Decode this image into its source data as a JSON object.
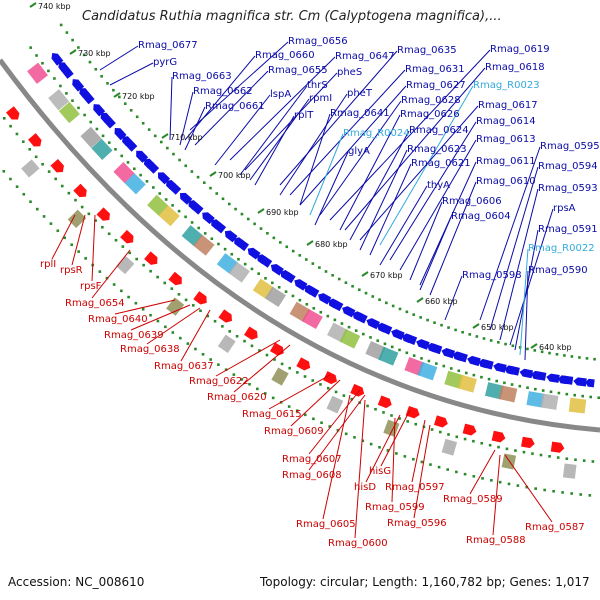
{
  "title": "Candidatus Ruthia magnifica str. Cm (Calyptogena magnifica),...",
  "footer": {
    "accession": "Accession: NC_008610",
    "topology": "Topology: circular; Length: 1,160,782 bp; Genes: 1,017"
  },
  "colors": {
    "forward_label": "#0a0aa8",
    "reverse_label": "#cc0000",
    "rna_label": "#33aadd",
    "backbone": "#888888",
    "dots": "#2a8a2a"
  },
  "ticks": [
    {
      "label": "740 kbp"
    },
    {
      "label": "730 kbp"
    },
    {
      "label": "720 kbp"
    },
    {
      "label": "710 kbp"
    },
    {
      "label": "700 kbp"
    },
    {
      "label": "690 kbp"
    },
    {
      "label": "680 kbp"
    },
    {
      "label": "670 kbp"
    },
    {
      "label": "660 kbp"
    },
    {
      "label": "650 kbp"
    },
    {
      "label": "640 kbp"
    }
  ],
  "forward_labels": [
    {
      "text": "Rmag_0677",
      "kind": "gene"
    },
    {
      "text": "pyrG",
      "kind": "gene"
    },
    {
      "text": "Rmag_0656",
      "kind": "gene"
    },
    {
      "text": "Rmag_0660",
      "kind": "gene"
    },
    {
      "text": "Rmag_0647",
      "kind": "gene"
    },
    {
      "text": "Rmag_0635",
      "kind": "gene"
    },
    {
      "text": "Rmag_0619",
      "kind": "gene"
    },
    {
      "text": "Rmag_0655",
      "kind": "gene"
    },
    {
      "text": "pheS",
      "kind": "gene"
    },
    {
      "text": "Rmag_0631",
      "kind": "gene"
    },
    {
      "text": "Rmag_0618",
      "kind": "gene"
    },
    {
      "text": "Rmag_0663",
      "kind": "gene"
    },
    {
      "text": "thrS",
      "kind": "gene"
    },
    {
      "text": "Rmag_0627",
      "kind": "gene"
    },
    {
      "text": "Rmag_R0023",
      "kind": "rna"
    },
    {
      "text": "Rmag_0662",
      "kind": "gene"
    },
    {
      "text": "lspA",
      "kind": "gene"
    },
    {
      "text": "rpmI",
      "kind": "gene"
    },
    {
      "text": "pheT",
      "kind": "gene"
    },
    {
      "text": "Rmag_0628",
      "kind": "gene"
    },
    {
      "text": "Rmag_0617",
      "kind": "gene"
    },
    {
      "text": "Rmag_0661",
      "kind": "gene"
    },
    {
      "text": "rplT",
      "kind": "gene"
    },
    {
      "text": "Rmag_0641",
      "kind": "gene"
    },
    {
      "text": "Rmag_0626",
      "kind": "gene"
    },
    {
      "text": "Rmag_0614",
      "kind": "gene"
    },
    {
      "text": "Rmag_R0024",
      "kind": "rna"
    },
    {
      "text": "Rmag_0624",
      "kind": "gene"
    },
    {
      "text": "Rmag_0613",
      "kind": "gene"
    },
    {
      "text": "Rmag_0595",
      "kind": "gene"
    },
    {
      "text": "glyA",
      "kind": "gene"
    },
    {
      "text": "Rmag_0623",
      "kind": "gene"
    },
    {
      "text": "Rmag_0621",
      "kind": "gene"
    },
    {
      "text": "Rmag_0611",
      "kind": "gene"
    },
    {
      "text": "Rmag_0594",
      "kind": "gene"
    },
    {
      "text": "thyA",
      "kind": "gene"
    },
    {
      "text": "Rmag_0610",
      "kind": "gene"
    },
    {
      "text": "Rmag_0593",
      "kind": "gene"
    },
    {
      "text": "Rmag_0606",
      "kind": "gene"
    },
    {
      "text": "rpsA",
      "kind": "gene"
    },
    {
      "text": "Rmag_0604",
      "kind": "gene"
    },
    {
      "text": "Rmag_0591",
      "kind": "gene"
    },
    {
      "text": "Rmag_R0022",
      "kind": "rna"
    },
    {
      "text": "Rmag_0598",
      "kind": "gene"
    },
    {
      "text": "Rmag_0590",
      "kind": "gene"
    }
  ],
  "reverse_labels": [
    {
      "text": "rplI"
    },
    {
      "text": "rpsR"
    },
    {
      "text": "rpsF"
    },
    {
      "text": "Rmag_0654"
    },
    {
      "text": "Rmag_0640"
    },
    {
      "text": "Rmag_0639"
    },
    {
      "text": "Rmag_0638"
    },
    {
      "text": "Rmag_0637"
    },
    {
      "text": "Rmag_0622"
    },
    {
      "text": "Rmag_0620"
    },
    {
      "text": "Rmag_0615"
    },
    {
      "text": "Rmag_0609"
    },
    {
      "text": "Rmag_0607"
    },
    {
      "text": "Rmag_0608"
    },
    {
      "text": "hisG"
    },
    {
      "text": "hisD"
    },
    {
      "text": "Rmag_0597"
    },
    {
      "text": "Rmag_0599"
    },
    {
      "text": "Rmag_0596"
    },
    {
      "text": "Rmag_0605"
    },
    {
      "text": "Rmag_0600"
    },
    {
      "text": "Rmag_0589"
    },
    {
      "text": "Rmag_0588"
    },
    {
      "text": "Rmag_0587"
    }
  ]
}
